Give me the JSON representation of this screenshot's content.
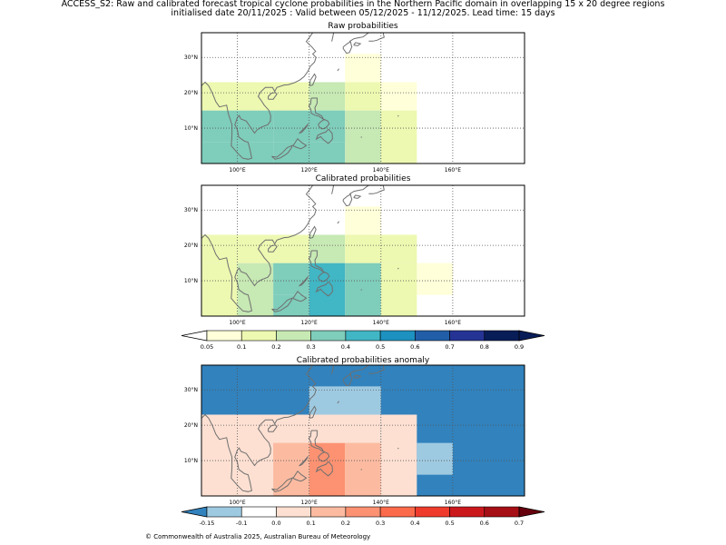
{
  "figure": {
    "title_line1": "ACCESS_S2: Raw and calibrated forecast tropical cyclone probabilities in the Northern Pacific domain in overlapping 15 x 20 degree regions",
    "title_line2": "initialised date 20/11/2025 :  Valid between 05/12/2025 - 11/12/2025. Lead time: 15 days",
    "copyright": "© Commonwealth of Australia 2025, Australian Bureau of Meteorology"
  },
  "colors": {
    "prob_scale": [
      "#ffffff",
      "#ffffd9",
      "#edf8b1",
      "#c7e9b4",
      "#7fcdbb",
      "#41b6c4",
      "#1d91c0",
      "#225ea8",
      "#253494",
      "#081d58",
      "#081d58"
    ],
    "anom_scale": [
      "#3182bd",
      "#9ecae1",
      "#ffffff",
      "#fee0d2",
      "#fcbba1",
      "#fc9272",
      "#fb6a4a",
      "#ef3b2c",
      "#cb181d",
      "#a50f15",
      "#67000d"
    ],
    "coast": "#6f6f6f",
    "grid": "#555555"
  },
  "chart_data": [
    {
      "type": "heatmap",
      "title": "Raw probabilities",
      "lon_range": [
        90,
        180
      ],
      "lat_range": [
        0,
        37
      ],
      "xticks": [
        "100°E",
        "120°E",
        "140°E",
        "160°E"
      ],
      "yticks": [
        "10°N",
        "20°N",
        "30°N"
      ],
      "cells": [
        {
          "lon": [
            90,
            110
          ],
          "lat": [
            0,
            6
          ],
          "value": 0.32
        },
        {
          "lon": [
            110,
            130
          ],
          "lat": [
            0,
            6
          ],
          "value": 0.35
        },
        {
          "lon": [
            130,
            140
          ],
          "lat": [
            0,
            9
          ],
          "value": 0.25
        },
        {
          "lon": [
            140,
            150
          ],
          "lat": [
            0,
            9
          ],
          "value": 0.12
        },
        {
          "lon": [
            90,
            110
          ],
          "lat": [
            6,
            15
          ],
          "value": 0.35
        },
        {
          "lon": [
            110,
            130
          ],
          "lat": [
            6,
            15
          ],
          "value": 0.36
        },
        {
          "lon": [
            130,
            140
          ],
          "lat": [
            9,
            15
          ],
          "value": 0.25
        },
        {
          "lon": [
            140,
            150
          ],
          "lat": [
            9,
            15
          ],
          "value": 0.12
        },
        {
          "lon": [
            90,
            120
          ],
          "lat": [
            15,
            23
          ],
          "value": 0.12
        },
        {
          "lon": [
            120,
            130
          ],
          "lat": [
            15,
            23
          ],
          "value": 0.25
        },
        {
          "lon": [
            130,
            140
          ],
          "lat": [
            15,
            23
          ],
          "value": 0.12
        },
        {
          "lon": [
            140,
            150
          ],
          "lat": [
            15,
            23
          ],
          "value": 0.07
        },
        {
          "lon": [
            130,
            140
          ],
          "lat": [
            23,
            31
          ],
          "value": 0.07
        }
      ]
    },
    {
      "type": "heatmap",
      "title": "Calibrated probabilities",
      "lon_range": [
        90,
        180
      ],
      "lat_range": [
        0,
        37
      ],
      "xticks": [
        "100°E",
        "120°E",
        "140°E",
        "160°E"
      ],
      "yticks": [
        "10°N",
        "20°N",
        "30°N"
      ],
      "cells": [
        {
          "lon": [
            90,
            100
          ],
          "lat": [
            0,
            15
          ],
          "value": 0.12
        },
        {
          "lon": [
            100,
            110
          ],
          "lat": [
            0,
            15
          ],
          "value": 0.25
        },
        {
          "lon": [
            110,
            120
          ],
          "lat": [
            0,
            6
          ],
          "value": 0.35
        },
        {
          "lon": [
            120,
            130
          ],
          "lat": [
            0,
            15
          ],
          "value": 0.45
        },
        {
          "lon": [
            130,
            140
          ],
          "lat": [
            0,
            15
          ],
          "value": 0.35
        },
        {
          "lon": [
            140,
            150
          ],
          "lat": [
            0,
            15
          ],
          "value": 0.12
        },
        {
          "lon": [
            110,
            120
          ],
          "lat": [
            6,
            15
          ],
          "value": 0.35
        },
        {
          "lon": [
            150,
            160
          ],
          "lat": [
            6,
            15
          ],
          "value": 0.07
        },
        {
          "lon": [
            90,
            120
          ],
          "lat": [
            15,
            23
          ],
          "value": 0.12
        },
        {
          "lon": [
            120,
            130
          ],
          "lat": [
            15,
            23
          ],
          "value": 0.25
        },
        {
          "lon": [
            130,
            150
          ],
          "lat": [
            15,
            23
          ],
          "value": 0.12
        },
        {
          "lon": [
            130,
            140
          ],
          "lat": [
            23,
            31
          ],
          "value": 0.07
        }
      ]
    },
    {
      "type": "heatmap",
      "title": "Calibrated probabilities anomaly",
      "lon_range": [
        90,
        180
      ],
      "lat_range": [
        0,
        37
      ],
      "xticks": [
        "100°E",
        "120°E",
        "140°E",
        "160°E"
      ],
      "yticks": [
        "10°N",
        "20°N",
        "30°N"
      ],
      "cells": [
        {
          "lon": [
            90,
            180
          ],
          "lat": [
            0,
            37
          ],
          "value": -0.2
        },
        {
          "lon": [
            90,
            140
          ],
          "lat": [
            0,
            23
          ],
          "value": 0.0
        },
        {
          "lon": [
            100,
            110
          ],
          "lat": [
            0,
            15
          ],
          "value": 0.05
        },
        {
          "lon": [
            110,
            120
          ],
          "lat": [
            0,
            15
          ],
          "value": 0.15
        },
        {
          "lon": [
            120,
            130
          ],
          "lat": [
            0,
            15
          ],
          "value": 0.25
        },
        {
          "lon": [
            130,
            140
          ],
          "lat": [
            0,
            15
          ],
          "value": 0.15
        },
        {
          "lon": [
            140,
            150
          ],
          "lat": [
            0,
            23
          ],
          "value": 0.0
        },
        {
          "lon": [
            150,
            160
          ],
          "lat": [
            6,
            15
          ],
          "value": -0.12
        },
        {
          "lon": [
            120,
            130
          ],
          "lat": [
            15,
            23
          ],
          "value": 0.05
        },
        {
          "lon": [
            120,
            140
          ],
          "lat": [
            23,
            31
          ],
          "value": -0.12
        }
      ]
    }
  ],
  "colorbar_prob": {
    "bounds": [
      0.05,
      0.1,
      0.2,
      0.3,
      0.4,
      0.5,
      0.6,
      0.7,
      0.8,
      0.9
    ],
    "labels": [
      "0.05",
      "0.1",
      "0.2",
      "0.3",
      "0.4",
      "0.5",
      "0.6",
      "0.7",
      "0.8",
      "0.9"
    ]
  },
  "colorbar_anom": {
    "bounds": [
      -0.15,
      -0.1,
      0.0,
      0.1,
      0.2,
      0.3,
      0.4,
      0.5,
      0.6,
      0.7
    ],
    "labels": [
      "-0.15",
      "-0.1",
      "0.0",
      "0.1",
      "0.2",
      "0.3",
      "0.4",
      "0.5",
      "0.6",
      "0.7"
    ]
  }
}
